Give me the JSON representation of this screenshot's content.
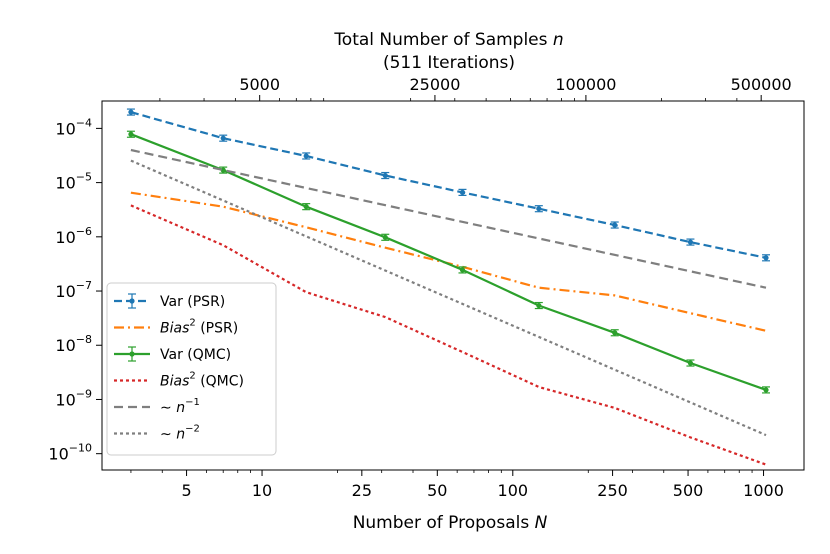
{
  "chart_data": {
    "type": "line",
    "xscale": "log",
    "yscale": "log",
    "xlabel_prefix": "Number of Proposals ",
    "xlabel_var": "N",
    "top_title_prefix": "Total Number of Samples ",
    "top_title_var": "n",
    "top_subtitle": "(511 Iterations)",
    "xlim": [
      2.3,
      1450
    ],
    "ylim": [
      5e-11,
      0.00032
    ],
    "xticks": [
      {
        "value": 5,
        "label": "5"
      },
      {
        "value": 10,
        "label": "10"
      },
      {
        "value": 25,
        "label": "25"
      },
      {
        "value": 50,
        "label": "50"
      },
      {
        "value": 100,
        "label": "100"
      },
      {
        "value": 250,
        "label": "250"
      },
      {
        "value": 500,
        "label": "500"
      },
      {
        "value": 1000,
        "label": "1000"
      }
    ],
    "top_ticks": [
      {
        "value": 9.785,
        "label": "5000"
      },
      {
        "value": 48.92,
        "label": "25000"
      },
      {
        "value": 195.7,
        "label": "100000"
      },
      {
        "value": 978.5,
        "label": "500000"
      }
    ],
    "yticks": [
      {
        "value": 0.0001,
        "base": "10",
        "exp": "−4"
      },
      {
        "value": 1e-05,
        "base": "10",
        "exp": "−5"
      },
      {
        "value": 1e-06,
        "base": "10",
        "exp": "−6"
      },
      {
        "value": 1e-07,
        "base": "10",
        "exp": "−7"
      },
      {
        "value": 1e-08,
        "base": "10",
        "exp": "−8"
      },
      {
        "value": 1e-09,
        "base": "10",
        "exp": "−9"
      },
      {
        "value": 1e-10,
        "base": "10",
        "exp": "−10"
      }
    ],
    "series": [
      {
        "id": "var-psr",
        "label_plain": "Var (PSR)",
        "color": "#1f77b4",
        "dash": "8,4",
        "marker": true,
        "errorbars": true,
        "x": [
          3,
          7,
          15,
          31,
          63,
          127,
          255,
          511,
          1023
        ],
        "y": [
          0.0002,
          6.6e-05,
          3.1e-05,
          1.35e-05,
          6.6e-06,
          3.3e-06,
          1.65e-06,
          8e-07,
          4.1e-07
        ]
      },
      {
        "id": "bias-psr",
        "label_italic": "Bias",
        "label_sup": "2",
        "label_rest": " (PSR)",
        "color": "#ff7f0e",
        "dash": "10,4,2,4",
        "marker": false,
        "errorbars": false,
        "x": [
          3,
          7,
          15,
          31,
          63,
          127,
          255,
          511,
          1023
        ],
        "y": [
          6.5e-06,
          3.6e-06,
          1.5e-06,
          6.3e-07,
          2.8e-07,
          1.15e-07,
          8.3e-08,
          3.9e-08,
          1.85e-08
        ]
      },
      {
        "id": "var-qmc",
        "label_plain": "Var (QMC)",
        "color": "#2ca02c",
        "dash": "",
        "marker": true,
        "errorbars": true,
        "x": [
          3,
          7,
          15,
          31,
          63,
          127,
          255,
          511,
          1023
        ],
        "y": [
          7.8e-05,
          1.7e-05,
          3.6e-06,
          9.8e-07,
          2.45e-07,
          5.4e-08,
          1.7e-08,
          4.7e-09,
          1.5e-09
        ]
      },
      {
        "id": "bias-qmc",
        "label_italic": "Bias",
        "label_sup": "2",
        "label_rest": " (QMC)",
        "color": "#d62728",
        "dash": "3,3",
        "marker": false,
        "errorbars": false,
        "x": [
          3,
          7,
          15,
          31,
          63,
          127,
          255,
          511,
          1023
        ],
        "y": [
          3.8e-06,
          7e-07,
          9.5e-08,
          3.3e-08,
          7.5e-09,
          1.7e-09,
          7e-10,
          2e-10,
          6.3e-11
        ]
      },
      {
        "id": "ref-n1",
        "label_prefix": "∼ ",
        "label_italic": "n",
        "label_sup": "−1",
        "color": "#7f7f7f",
        "dash": "9,5",
        "marker": false,
        "errorbars": false,
        "x": [
          3,
          1023
        ],
        "y": [
          4e-05,
          1.15e-07
        ]
      },
      {
        "id": "ref-n2",
        "label_prefix": "∼ ",
        "label_italic": "n",
        "label_sup": "−2",
        "color": "#7f7f7f",
        "dash": "3,3",
        "marker": false,
        "errorbars": false,
        "x": [
          3,
          1023
        ],
        "y": [
          2.55e-05,
          2.2e-10
        ]
      }
    ]
  }
}
